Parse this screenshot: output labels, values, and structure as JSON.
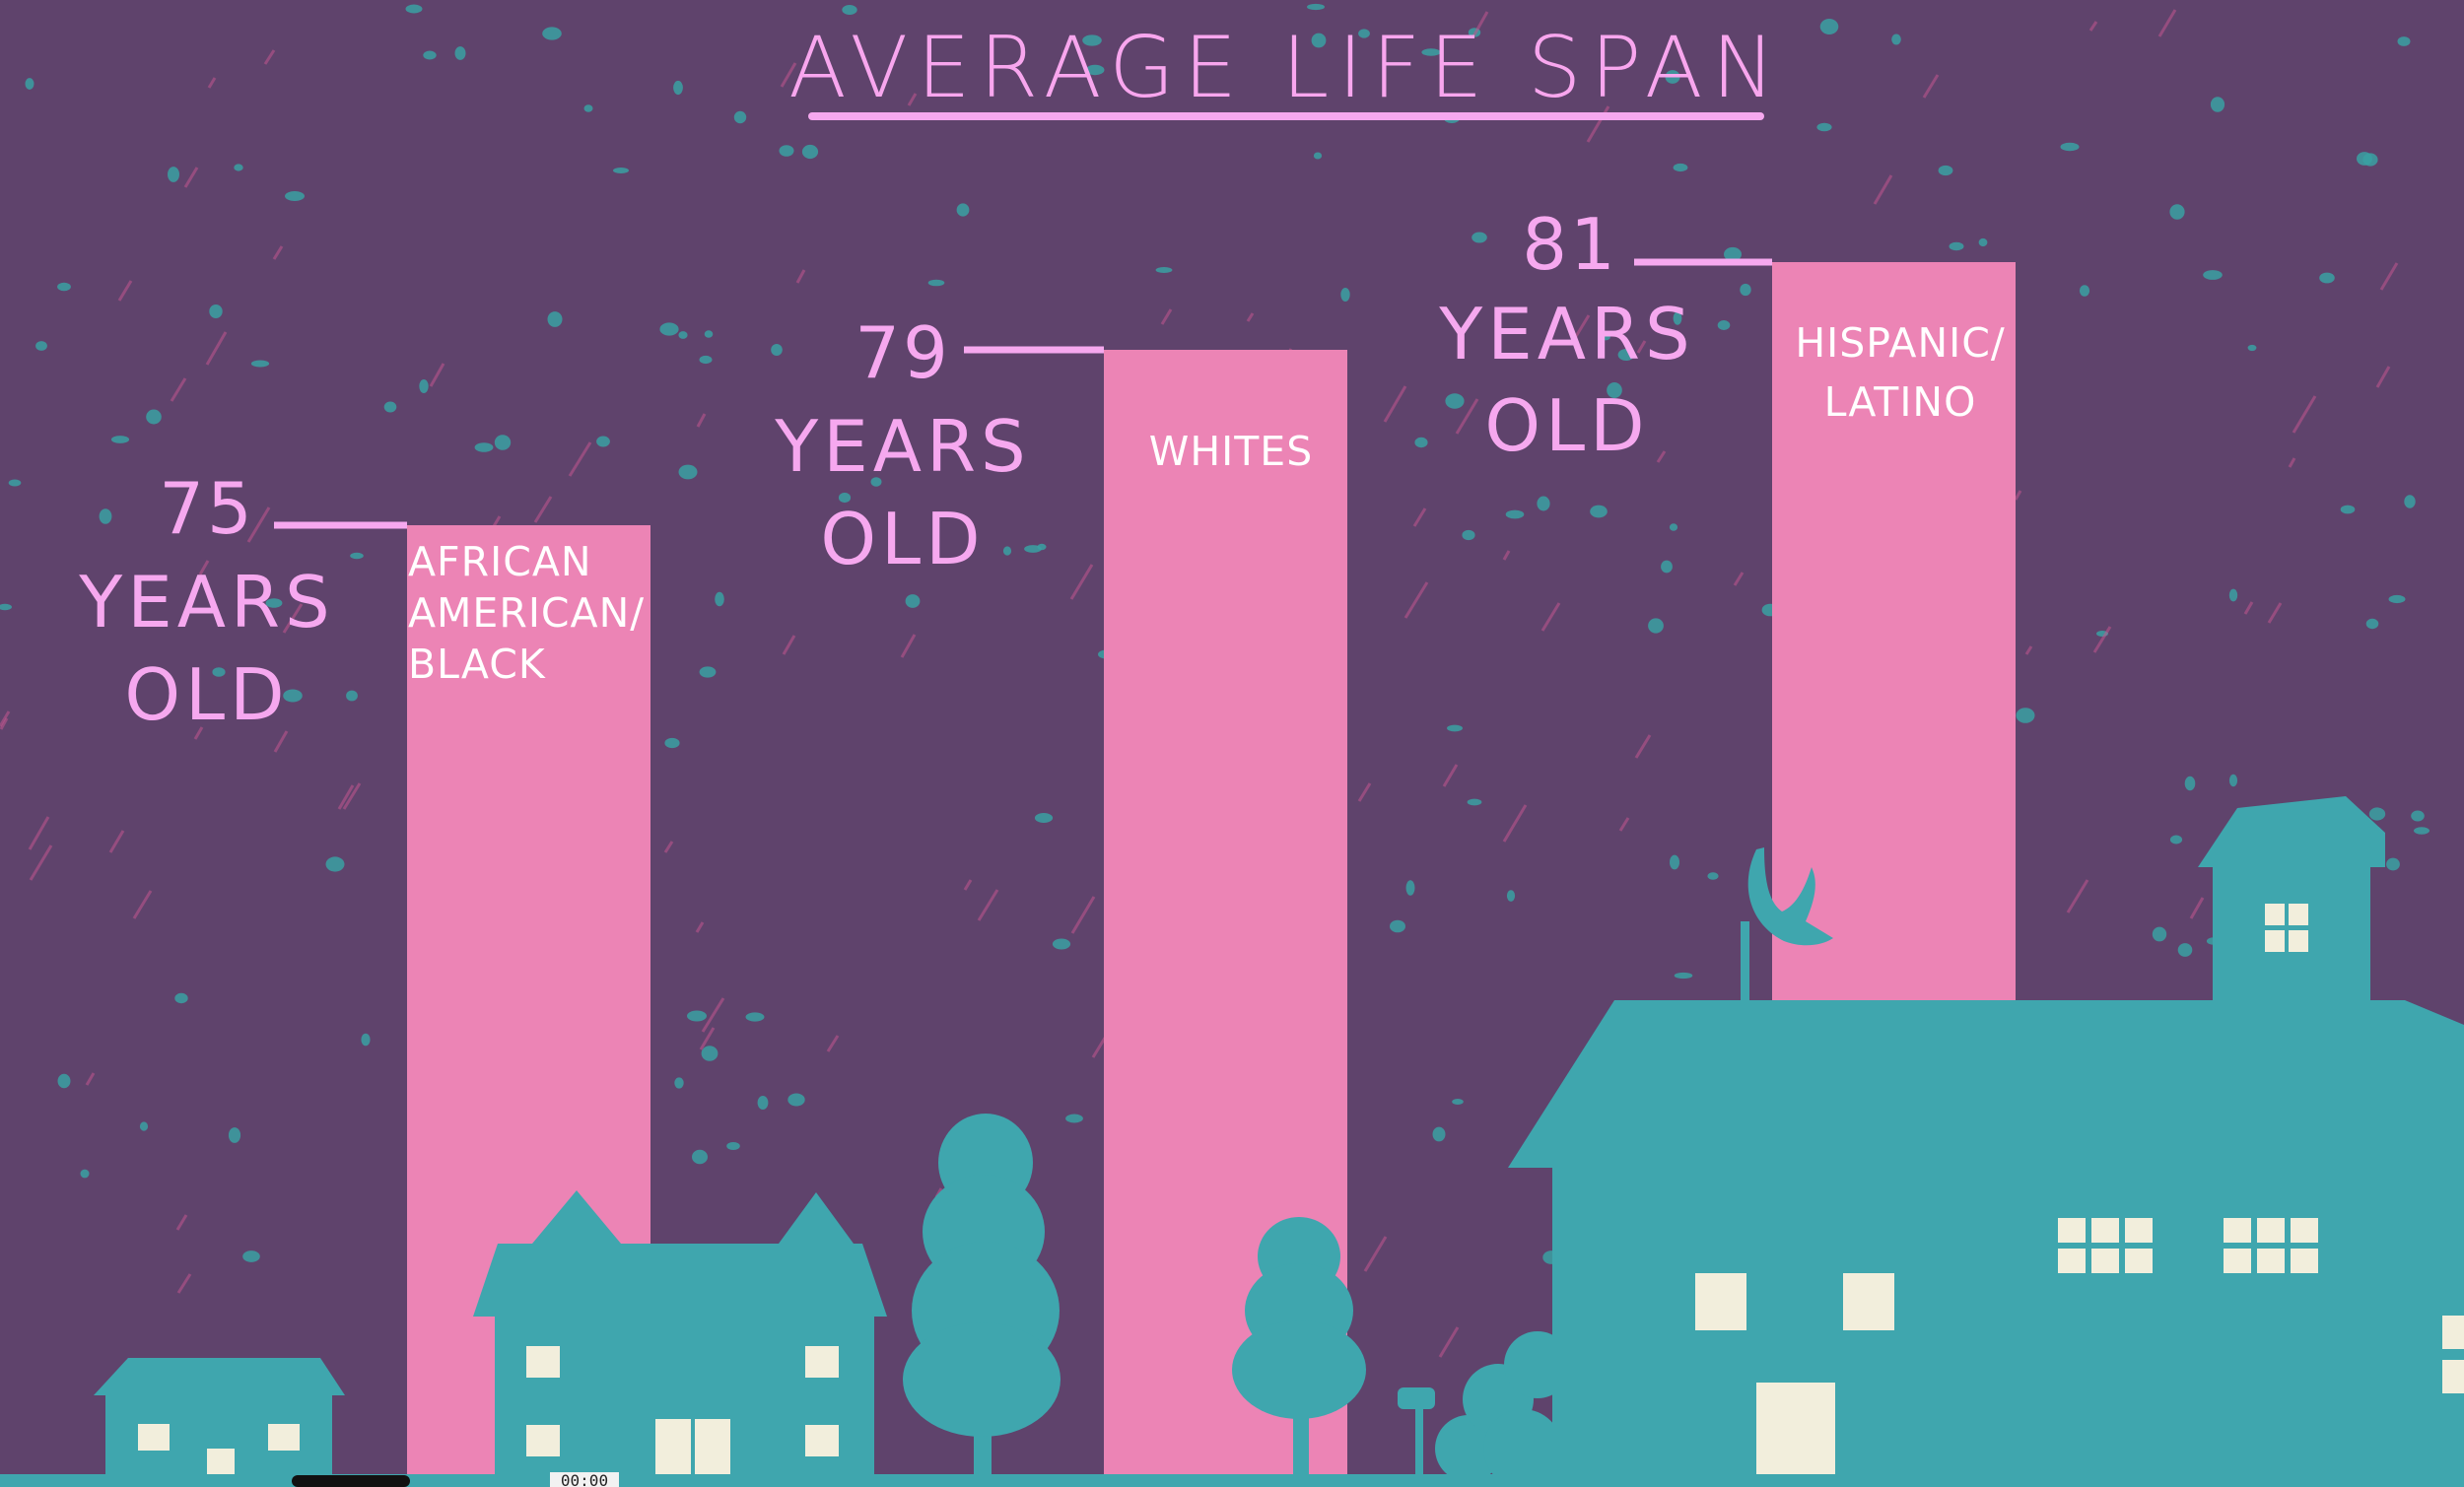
{
  "title": "AVERAGE LIFE SPAN",
  "colors": {
    "background": "#5f436c",
    "bar": "#ec84b5",
    "annotation": "#f6a8ef",
    "houses": "#3fa6ae",
    "windows": "#f2eedc"
  },
  "chart_data": {
    "type": "bar",
    "title": "AVERAGE LIFE SPAN",
    "categories": [
      "AFRICAN AMERICAN/ BLACK",
      "WHITES",
      "HISPANIC/ LATINO"
    ],
    "values": [
      75,
      79,
      81
    ],
    "value_labels": [
      {
        "number": "75",
        "line1": "YEARS",
        "line2": "OLD"
      },
      {
        "number": "79",
        "line1": "YEARS",
        "line2": "OLD"
      },
      {
        "number": "81",
        "line1": "YEARS",
        "line2": "OLD"
      }
    ],
    "bar_label_lines": [
      [
        "AFRICAN",
        "AMERICAN/",
        "BLACK"
      ],
      [
        "WHITES"
      ],
      [
        "HISPANIC/",
        "LATINO"
      ]
    ]
  },
  "player": {
    "timestamp": "00:00"
  }
}
